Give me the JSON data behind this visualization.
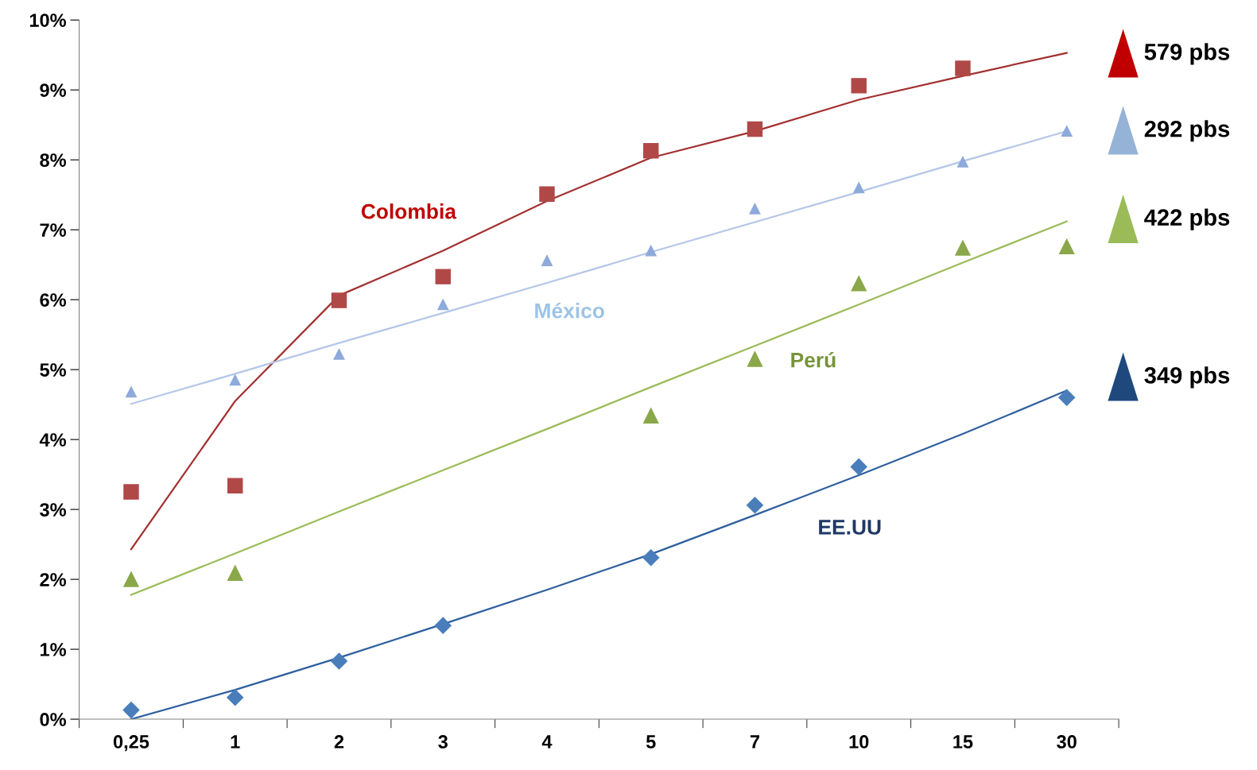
{
  "chart_data": {
    "type": "scatter",
    "categories": [
      "0,25",
      "1",
      "2",
      "3",
      "4",
      "5",
      "7",
      "10",
      "15",
      "30"
    ],
    "ylim": [
      0,
      10
    ],
    "yticks": [
      {
        "value": 0,
        "label": "0%"
      },
      {
        "value": 1,
        "label": "1%"
      },
      {
        "value": 2,
        "label": "2%"
      },
      {
        "value": 3,
        "label": "3%"
      },
      {
        "value": 4,
        "label": "4%"
      },
      {
        "value": 5,
        "label": "5%"
      },
      {
        "value": 6,
        "label": "6%"
      },
      {
        "value": 7,
        "label": "7%"
      },
      {
        "value": 8,
        "label": "8%"
      },
      {
        "value": 9,
        "label": "9%"
      },
      {
        "value": 10,
        "label": "10%"
      }
    ],
    "grid": false,
    "legend": false,
    "series": [
      {
        "marker": "square",
        "color": "#b04848",
        "values": [
          3.25,
          3.34,
          5.99,
          6.33,
          7.51,
          8.13,
          8.44,
          9.06,
          9.31,
          null
        ]
      },
      {
        "marker": "triangle",
        "color": "#8eaadb",
        "values": [
          4.68,
          4.85,
          5.22,
          5.93,
          6.56,
          6.7,
          7.3,
          7.6,
          7.97,
          8.41
        ]
      },
      {
        "marker": "triangle",
        "color": "#8aa84a",
        "values": [
          2.0,
          2.09,
          null,
          null,
          null,
          4.34,
          5.15,
          6.23,
          6.74,
          6.76
        ]
      },
      {
        "marker": "diamond",
        "color": "#4a7ebb",
        "values": [
          0.13,
          0.31,
          0.83,
          1.34,
          null,
          2.31,
          3.06,
          3.61,
          null,
          4.6
        ]
      },
      {
        "type": "line",
        "color": "#a33030",
        "values": [
          2.43,
          4.55,
          6.06,
          6.7,
          7.41,
          8.03,
          8.41,
          8.86,
          9.2,
          9.53
        ]
      },
      {
        "type": "line",
        "color": "#b4c7e7",
        "values": [
          4.51,
          4.94,
          5.38,
          5.81,
          6.24,
          6.68,
          7.11,
          7.54,
          7.98,
          8.41
        ]
      },
      {
        "type": "line",
        "color": "#9bbb59",
        "values": [
          1.78,
          2.37,
          2.97,
          3.56,
          4.15,
          4.75,
          5.34,
          5.93,
          6.53,
          7.12
        ]
      },
      {
        "type": "line",
        "color": "#2e5f9e",
        "values": [
          0.0,
          0.42,
          0.88,
          1.36,
          1.85,
          2.36,
          2.92,
          3.49,
          4.08,
          4.7
        ]
      }
    ],
    "annotations": [
      "Colombia",
      "México",
      "Perú",
      "EE.UU",
      "579 pbs",
      "292 pbs",
      "422 pbs",
      "349 pbs"
    ]
  }
}
